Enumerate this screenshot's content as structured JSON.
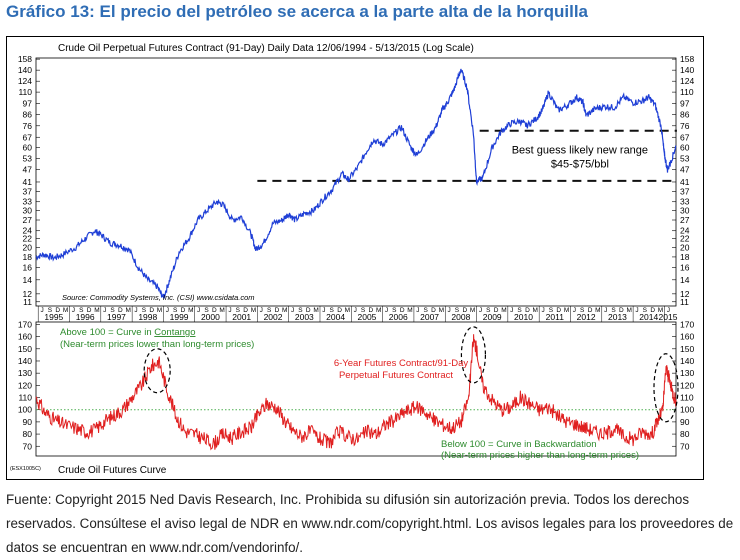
{
  "page": {
    "title": "Gráfico 13: El precio del petróleo se acerca a la parte alta de la horquilla",
    "footer": "Fuente: Copyright 2015 Ned Davis Research, Inc. Prohibida su difusión sin autorización previa. Todos los derechos reservados. Consúltese el aviso legal de NDR en www.ndr.com/copyright.html. Los avisos legales para los proveedores de datos se encuentran en www.ndr.com/vendorinfo/."
  },
  "chart_data": [
    {
      "type": "line",
      "title": "Crude Oil Perpetual Futures Contract (91-Day)  Daily Data 12/06/1994 - 5/13/2015  (Log Scale)",
      "source": "Source: Commodity Systems, Inc. (CSI) www.csidata.com",
      "scale": "log",
      "ylim": [
        10.5,
        160
      ],
      "yticks": [
        11,
        12,
        14,
        16,
        18,
        20,
        22,
        24,
        27,
        30,
        33,
        37,
        41,
        47,
        53,
        60,
        67,
        76,
        86,
        97,
        110,
        124,
        140,
        158
      ],
      "x": [
        1994.93,
        1995.2,
        1995.5,
        1995.8,
        1996.2,
        1996.5,
        1996.8,
        1997.0,
        1997.3,
        1997.6,
        1997.9,
        1998.2,
        1998.5,
        1998.8,
        1999.0,
        1999.2,
        1999.5,
        1999.8,
        2000.1,
        2000.4,
        2000.7,
        2000.9,
        2001.2,
        2001.5,
        2001.8,
        2001.95,
        2002.2,
        2002.5,
        2002.8,
        2003.0,
        2003.2,
        2003.5,
        2003.8,
        2004.1,
        2004.4,
        2004.7,
        2004.9,
        2005.2,
        2005.5,
        2005.7,
        2006.0,
        2006.3,
        2006.6,
        2006.9,
        2007.1,
        2007.4,
        2007.7,
        2007.9,
        2008.1,
        2008.3,
        2008.5,
        2008.7,
        2008.9,
        2009.0,
        2009.2,
        2009.5,
        2009.8,
        2010.1,
        2010.4,
        2010.6,
        2010.9,
        2011.1,
        2011.3,
        2011.6,
        2011.9,
        2012.2,
        2012.4,
        2012.5,
        2012.8,
        2013.1,
        2013.4,
        2013.7,
        2014.0,
        2014.3,
        2014.5,
        2014.7,
        2014.9,
        2015.0,
        2015.1,
        2015.2,
        2015.37
      ],
      "values": [
        18,
        18.5,
        17.8,
        18.5,
        20,
        22,
        24,
        23,
        21,
        20.5,
        19.5,
        16,
        14,
        13,
        11.5,
        14,
        19,
        22,
        27,
        30,
        33,
        32,
        27,
        28,
        23,
        19.5,
        21,
        26,
        27,
        29,
        27,
        29,
        30,
        34,
        38,
        45,
        42,
        48,
        58,
        65,
        62,
        68,
        75,
        60,
        55,
        65,
        75,
        90,
        100,
        115,
        142,
        115,
        70,
        41,
        43,
        60,
        72,
        78,
        80,
        76,
        82,
        90,
        110,
        90,
        95,
        104,
        98,
        85,
        92,
        94,
        93,
        104,
        98,
        100,
        104,
        96,
        75,
        55,
        47,
        51,
        61
      ],
      "annotations": [
        {
          "text": "Best guess likely new range",
          "x": 2012.3,
          "y": 56
        },
        {
          "text": "$45-$75/bbl",
          "x": 2012.3,
          "y": 48
        }
      ],
      "ref_lines": [
        {
          "y": 41.5,
          "x_start": 2002.0,
          "x_end": 2015.4,
          "style": "dashed"
        },
        {
          "y": 72,
          "x_start": 2009.1,
          "x_end": 2015.4,
          "style": "dashed"
        }
      ]
    },
    {
      "type": "line",
      "title": "Crude Oil Futures Curve",
      "label_tag": "(ESX1005C)",
      "ylim": [
        62,
        172
      ],
      "yticks": [
        70,
        80,
        90,
        100,
        110,
        120,
        130,
        140,
        150,
        160,
        170
      ],
      "x_tick_labels": [
        "1995",
        "1996",
        "1997",
        "1998",
        "1999",
        "2000",
        "2001",
        "2002",
        "2003",
        "2004",
        "2005",
        "2006",
        "2007",
        "2008",
        "2009",
        "2010",
        "2011",
        "2012",
        "2013",
        "2014",
        "2015"
      ],
      "x_minor_labels": [
        "J",
        "S",
        "D",
        "M"
      ],
      "x": [
        1994.93,
        1995.2,
        1995.5,
        1995.8,
        1996.2,
        1996.5,
        1996.8,
        1997.1,
        1997.4,
        1997.7,
        1998.0,
        1998.3,
        1998.6,
        1998.85,
        1999.1,
        1999.4,
        1999.7,
        2000.0,
        2000.3,
        2000.6,
        2000.9,
        2001.2,
        2001.5,
        2001.8,
        2002.0,
        2002.3,
        2002.6,
        2002.9,
        2003.1,
        2003.4,
        2003.7,
        2004.0,
        2004.3,
        2004.6,
        2004.9,
        2005.2,
        2005.5,
        2005.8,
        2006.1,
        2006.4,
        2006.7,
        2007.0,
        2007.3,
        2007.6,
        2007.9,
        2008.2,
        2008.5,
        2008.75,
        2008.9,
        2009.0,
        2009.2,
        2009.5,
        2009.8,
        2010.1,
        2010.4,
        2010.7,
        2011.0,
        2011.3,
        2011.6,
        2011.9,
        2012.2,
        2012.5,
        2012.8,
        2013.1,
        2013.4,
        2013.7,
        2014.0,
        2014.3,
        2014.6,
        2014.8,
        2014.95,
        2015.05,
        2015.15,
        2015.25,
        2015.37
      ],
      "values": [
        110,
        98,
        92,
        88,
        85,
        82,
        83,
        90,
        95,
        100,
        110,
        120,
        135,
        140,
        118,
        95,
        82,
        80,
        76,
        72,
        80,
        77,
        82,
        85,
        95,
        105,
        102,
        90,
        84,
        78,
        82,
        76,
        72,
        82,
        78,
        76,
        82,
        80,
        88,
        92,
        98,
        102,
        100,
        92,
        88,
        85,
        90,
        110,
        158,
        150,
        120,
        108,
        100,
        102,
        110,
        105,
        100,
        102,
        95,
        90,
        88,
        85,
        82,
        80,
        85,
        78,
        76,
        82,
        80,
        92,
        100,
        135,
        125,
        115,
        108
      ],
      "ref_lines": [
        {
          "y": 100,
          "style": "dotted",
          "color": "#4caf50"
        }
      ],
      "annotations": [
        {
          "text": "Above 100 = Curve in Contango",
          "underline_word": "Contango",
          "color": "#2e8b2e"
        },
        {
          "text": "(Near-term prices lower than long-term prices)",
          "color": "#2e8b2e"
        },
        {
          "text": "6-Year Futures Contract/91-Day",
          "color": "#e02020"
        },
        {
          "text": "Perpetual Futures Contract",
          "color": "#e02020"
        },
        {
          "text": "Below 100 = Curve in Backwardation",
          "color": "#2e8b2e"
        },
        {
          "text": "(Near-term prices higher than long-term prices)",
          "color": "#2e8b2e"
        }
      ]
    }
  ],
  "colors": {
    "title": "#2f6db5",
    "top_line": "#1f3fd6",
    "bottom_line": "#e02020",
    "green": "#2e8b2e",
    "ref": "#111111"
  }
}
